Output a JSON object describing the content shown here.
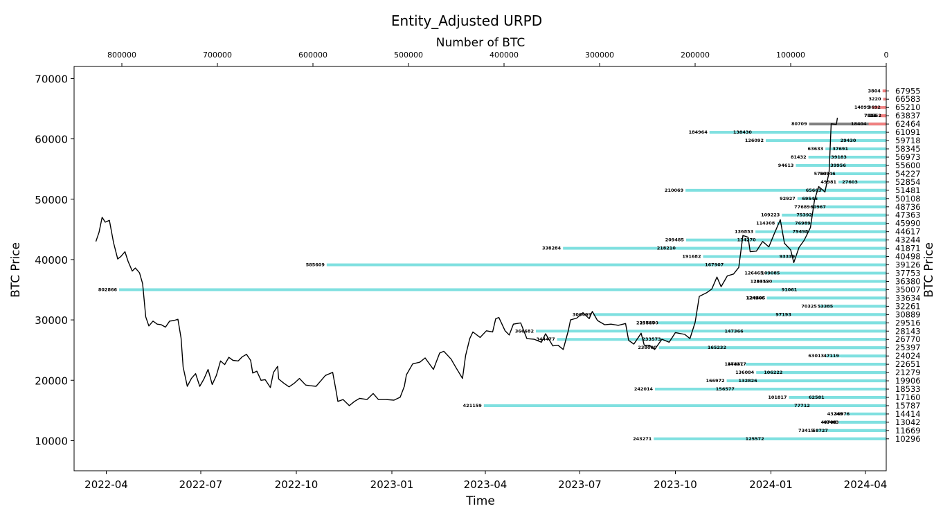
{
  "chart_data": {
    "type": "line",
    "title": "Entity_Adjusted URPD",
    "xlabel": "Time",
    "ylabel": "BTC Price",
    "y2label": "BTC Price",
    "top_xlabel": "Number of BTC",
    "ylim": [
      5000,
      72000
    ],
    "y_ticks": [
      10000,
      20000,
      30000,
      40000,
      50000,
      60000,
      70000
    ],
    "x_ticks": [
      "2022-04",
      "2022-07",
      "2022-10",
      "2023-01",
      "2023-04",
      "2023-07",
      "2023-10",
      "2024-01",
      "2024-04"
    ],
    "top_x_ticks": [
      800000,
      700000,
      600000,
      500000,
      400000,
      300000,
      200000,
      100000,
      0
    ],
    "top_xlim": [
      850000,
      0
    ],
    "grid": false,
    "price_series": {
      "name": "BTC Price",
      "color": "#000000",
      "points": [
        [
          "2022-03-22",
          43000
        ],
        [
          "2022-03-25",
          44500
        ],
        [
          "2022-03-28",
          47000
        ],
        [
          "2022-03-31",
          46200
        ],
        [
          "2022-04-04",
          46500
        ],
        [
          "2022-04-08",
          42800
        ],
        [
          "2022-04-12",
          40100
        ],
        [
          "2022-04-15",
          40500
        ],
        [
          "2022-04-19",
          41300
        ],
        [
          "2022-04-22",
          39700
        ],
        [
          "2022-04-26",
          38100
        ],
        [
          "2022-04-29",
          38600
        ],
        [
          "2022-05-03",
          37800
        ],
        [
          "2022-05-06",
          36000
        ],
        [
          "2022-05-09",
          30500
        ],
        [
          "2022-05-12",
          29000
        ],
        [
          "2022-05-16",
          29800
        ],
        [
          "2022-05-20",
          29300
        ],
        [
          "2022-05-24",
          29200
        ],
        [
          "2022-05-28",
          28800
        ],
        [
          "2022-06-01",
          29800
        ],
        [
          "2022-06-05",
          29900
        ],
        [
          "2022-06-09",
          30100
        ],
        [
          "2022-06-12",
          27000
        ],
        [
          "2022-06-14",
          22200
        ],
        [
          "2022-06-18",
          19000
        ],
        [
          "2022-06-22",
          20300
        ],
        [
          "2022-06-26",
          21100
        ],
        [
          "2022-06-30",
          19000
        ],
        [
          "2022-07-04",
          20200
        ],
        [
          "2022-07-08",
          21800
        ],
        [
          "2022-07-12",
          19300
        ],
        [
          "2022-07-16",
          20800
        ],
        [
          "2022-07-20",
          23200
        ],
        [
          "2022-07-24",
          22600
        ],
        [
          "2022-07-28",
          23800
        ],
        [
          "2022-08-01",
          23300
        ],
        [
          "2022-08-06",
          23200
        ],
        [
          "2022-08-10",
          23900
        ],
        [
          "2022-08-14",
          24300
        ],
        [
          "2022-08-18",
          23300
        ],
        [
          "2022-08-20",
          21200
        ],
        [
          "2022-08-24",
          21500
        ],
        [
          "2022-08-28",
          20000
        ],
        [
          "2022-09-01",
          20100
        ],
        [
          "2022-09-06",
          18800
        ],
        [
          "2022-09-09",
          21300
        ],
        [
          "2022-09-13",
          22300
        ],
        [
          "2022-09-14",
          20200
        ],
        [
          "2022-09-19",
          19500
        ],
        [
          "2022-09-24",
          18900
        ],
        [
          "2022-09-29",
          19500
        ],
        [
          "2022-10-04",
          20300
        ],
        [
          "2022-10-10",
          19200
        ],
        [
          "2022-10-14",
          19100
        ],
        [
          "2022-10-20",
          19000
        ],
        [
          "2022-10-25",
          20000
        ],
        [
          "2022-10-29",
          20800
        ],
        [
          "2022-11-05",
          21300
        ],
        [
          "2022-11-08",
          18500
        ],
        [
          "2022-11-10",
          16500
        ],
        [
          "2022-11-15",
          16800
        ],
        [
          "2022-11-21",
          15800
        ],
        [
          "2022-11-26",
          16500
        ],
        [
          "2022-12-01",
          17000
        ],
        [
          "2022-12-08",
          16800
        ],
        [
          "2022-12-14",
          17800
        ],
        [
          "2022-12-19",
          16800
        ],
        [
          "2022-12-26",
          16800
        ],
        [
          "2023-01-03",
          16700
        ],
        [
          "2023-01-09",
          17200
        ],
        [
          "2023-01-13",
          19000
        ],
        [
          "2023-01-15",
          20900
        ],
        [
          "2023-01-21",
          22700
        ],
        [
          "2023-01-28",
          23000
        ],
        [
          "2023-02-02",
          23700
        ],
        [
          "2023-02-10",
          21800
        ],
        [
          "2023-02-16",
          24500
        ],
        [
          "2023-02-20",
          24800
        ],
        [
          "2023-02-27",
          23500
        ],
        [
          "2023-03-03",
          22300
        ],
        [
          "2023-03-10",
          20300
        ],
        [
          "2023-03-13",
          24100
        ],
        [
          "2023-03-17",
          26900
        ],
        [
          "2023-03-20",
          28000
        ],
        [
          "2023-03-27",
          27100
        ],
        [
          "2023-04-02",
          28200
        ],
        [
          "2023-04-08",
          28000
        ],
        [
          "2023-04-11",
          30200
        ],
        [
          "2023-04-14",
          30400
        ],
        [
          "2023-04-20",
          28200
        ],
        [
          "2023-04-24",
          27500
        ],
        [
          "2023-04-28",
          29300
        ],
        [
          "2023-05-05",
          29500
        ],
        [
          "2023-05-11",
          26900
        ],
        [
          "2023-05-18",
          26800
        ],
        [
          "2023-05-25",
          26300
        ],
        [
          "2023-05-29",
          27700
        ],
        [
          "2023-06-05",
          25700
        ],
        [
          "2023-06-10",
          25800
        ],
        [
          "2023-06-15",
          25100
        ],
        [
          "2023-06-20",
          28300
        ],
        [
          "2023-06-22",
          30000
        ],
        [
          "2023-06-28",
          30300
        ],
        [
          "2023-07-04",
          31200
        ],
        [
          "2023-07-10",
          30200
        ],
        [
          "2023-07-13",
          31400
        ],
        [
          "2023-07-18",
          29900
        ],
        [
          "2023-07-25",
          29200
        ],
        [
          "2023-07-31",
          29300
        ],
        [
          "2023-08-07",
          29100
        ],
        [
          "2023-08-14",
          29400
        ],
        [
          "2023-08-17",
          26600
        ],
        [
          "2023-08-22",
          26000
        ],
        [
          "2023-08-29",
          27800
        ],
        [
          "2023-09-01",
          25800
        ],
        [
          "2023-09-06",
          25800
        ],
        [
          "2023-09-11",
          25100
        ],
        [
          "2023-09-18",
          26800
        ],
        [
          "2023-09-25",
          26300
        ],
        [
          "2023-10-01",
          27900
        ],
        [
          "2023-10-10",
          27600
        ],
        [
          "2023-10-15",
          26900
        ],
        [
          "2023-10-20",
          29600
        ],
        [
          "2023-10-24",
          33900
        ],
        [
          "2023-10-31",
          34500
        ],
        [
          "2023-11-05",
          35100
        ],
        [
          "2023-11-10",
          37100
        ],
        [
          "2023-11-14",
          35500
        ],
        [
          "2023-11-20",
          37300
        ],
        [
          "2023-11-26",
          37600
        ],
        [
          "2023-12-01",
          38700
        ],
        [
          "2023-12-05",
          44000
        ],
        [
          "2023-12-10",
          43700
        ],
        [
          "2023-12-12",
          41300
        ],
        [
          "2023-12-18",
          41400
        ],
        [
          "2023-12-24",
          43000
        ],
        [
          "2023-12-30",
          42100
        ],
        [
          "2024-01-04",
          44200
        ],
        [
          "2024-01-10",
          46600
        ],
        [
          "2024-01-14",
          42700
        ],
        [
          "2024-01-20",
          41600
        ],
        [
          "2024-01-23",
          39500
        ],
        [
          "2024-01-28",
          42000
        ],
        [
          "2024-02-02",
          43200
        ],
        [
          "2024-02-08",
          45300
        ],
        [
          "2024-02-12",
          49900
        ],
        [
          "2024-02-16",
          52100
        ],
        [
          "2024-02-22",
          51200
        ],
        [
          "2024-02-26",
          54500
        ],
        [
          "2024-02-28",
          62500
        ],
        [
          "2024-03-04",
          62400
        ],
        [
          "2024-03-05",
          63500
        ]
      ]
    },
    "urpd": {
      "bar_color": "#7fe0e0",
      "current_bucket_color": "#808080",
      "above_price_color": "#f08080",
      "buckets": [
        {
          "price": 67955,
          "supply": 3804,
          "kind": "above"
        },
        {
          "price": 66583,
          "supply": 3220,
          "kind": "above"
        },
        {
          "price": 65210,
          "supply": 3692,
          "kind": "above"
        },
        {
          "price": 65210,
          "supply": 14899,
          "kind": "above"
        },
        {
          "price": 63837,
          "supply": 2952,
          "kind": "above"
        },
        {
          "price": 63837,
          "supply": 7822,
          "kind": "above"
        },
        {
          "price": 63837,
          "supply": 7805,
          "kind": "above"
        },
        {
          "price": 62464,
          "supply": 18404,
          "kind": "above"
        },
        {
          "price": 62464,
          "supply": 80709,
          "kind": "current"
        },
        {
          "price": 61091,
          "supply": 138430,
          "kind": "below"
        },
        {
          "price": 61091,
          "supply": 184964,
          "kind": "below"
        },
        {
          "price": 59718,
          "supply": 126092,
          "kind": "below"
        },
        {
          "price": 59718,
          "supply": 29430,
          "kind": "below"
        },
        {
          "price": 58345,
          "supply": 63633,
          "kind": "below"
        },
        {
          "price": 58345,
          "supply": 37691,
          "kind": "below"
        },
        {
          "price": 56973,
          "supply": 39183,
          "kind": "below"
        },
        {
          "price": 56973,
          "supply": 81432,
          "kind": "below"
        },
        {
          "price": 55600,
          "supply": 94613,
          "kind": "below"
        },
        {
          "price": 55600,
          "supply": 39956,
          "kind": "below"
        },
        {
          "price": 54227,
          "supply": 57037,
          "kind": "below"
        },
        {
          "price": 54227,
          "supply": 50946,
          "kind": "below"
        },
        {
          "price": 52854,
          "supply": 49981,
          "kind": "below"
        },
        {
          "price": 52854,
          "supply": 27603,
          "kind": "below"
        },
        {
          "price": 51481,
          "supply": 65663,
          "kind": "below"
        },
        {
          "price": 51481,
          "supply": 210069,
          "kind": "below"
        },
        {
          "price": 50108,
          "supply": 92927,
          "kind": "below"
        },
        {
          "price": 50108,
          "supply": 69546,
          "kind": "below"
        },
        {
          "price": 48736,
          "supply": 77689,
          "kind": "below"
        },
        {
          "price": 48736,
          "supply": 60967,
          "kind": "below"
        },
        {
          "price": 47363,
          "supply": 75392,
          "kind": "below"
        },
        {
          "price": 47363,
          "supply": 109223,
          "kind": "below"
        },
        {
          "price": 45990,
          "supply": 114308,
          "kind": "below"
        },
        {
          "price": 45990,
          "supply": 76989,
          "kind": "below"
        },
        {
          "price": 44617,
          "supply": 136853,
          "kind": "below"
        },
        {
          "price": 44617,
          "supply": 79498,
          "kind": "below"
        },
        {
          "price": 43244,
          "supply": 134270,
          "kind": "below"
        },
        {
          "price": 43244,
          "supply": 209485,
          "kind": "below"
        },
        {
          "price": 41871,
          "supply": 338284,
          "kind": "below"
        },
        {
          "price": 41871,
          "supply": 218210,
          "kind": "below"
        },
        {
          "price": 40498,
          "supply": 191682,
          "kind": "below"
        },
        {
          "price": 40498,
          "supply": 93339,
          "kind": "below"
        },
        {
          "price": 39126,
          "supply": 585609,
          "kind": "below"
        },
        {
          "price": 39126,
          "supply": 167907,
          "kind": "below"
        },
        {
          "price": 37753,
          "supply": 109085,
          "kind": "below"
        },
        {
          "price": 37753,
          "supply": 126465,
          "kind": "below"
        },
        {
          "price": 36380,
          "supply": 120452,
          "kind": "below"
        },
        {
          "price": 36380,
          "supply": 117190,
          "kind": "below"
        },
        {
          "price": 35007,
          "supply": 91061,
          "kind": "below"
        },
        {
          "price": 35007,
          "supply": 802866,
          "kind": "below"
        },
        {
          "price": 33634,
          "supply": 124405,
          "kind": "below"
        },
        {
          "price": 33634,
          "supply": 124966,
          "kind": "below"
        },
        {
          "price": 32261,
          "supply": 70325,
          "kind": "below"
        },
        {
          "price": 32261,
          "supply": 53385,
          "kind": "below"
        },
        {
          "price": 30889,
          "supply": 97193,
          "kind": "below"
        },
        {
          "price": 30889,
          "supply": 306499,
          "kind": "below"
        },
        {
          "price": 29516,
          "supply": 236400,
          "kind": "below"
        },
        {
          "price": 29516,
          "supply": 239787,
          "kind": "below"
        },
        {
          "price": 28143,
          "supply": 366682,
          "kind": "below"
        },
        {
          "price": 28143,
          "supply": 147366,
          "kind": "below"
        },
        {
          "price": 26770,
          "supply": 233573,
          "kind": "below"
        },
        {
          "price": 26770,
          "supply": 344477,
          "kind": "below"
        },
        {
          "price": 25397,
          "supply": 238000,
          "kind": "below"
        },
        {
          "price": 25397,
          "supply": 165232,
          "kind": "below"
        },
        {
          "price": 24024,
          "supply": 47119,
          "kind": "below"
        },
        {
          "price": 24024,
          "supply": 63013,
          "kind": "below"
        },
        {
          "price": 22651,
          "supply": 144377,
          "kind": "below"
        },
        {
          "price": 22651,
          "supply": 147341,
          "kind": "below"
        },
        {
          "price": 21279,
          "supply": 106222,
          "kind": "below"
        },
        {
          "price": 21279,
          "supply": 136084,
          "kind": "below"
        },
        {
          "price": 19906,
          "supply": 166972,
          "kind": "below"
        },
        {
          "price": 19906,
          "supply": 132826,
          "kind": "below"
        },
        {
          "price": 18533,
          "supply": 242014,
          "kind": "below"
        },
        {
          "price": 18533,
          "supply": 156577,
          "kind": "below"
        },
        {
          "price": 17160,
          "supply": 62581,
          "kind": "below"
        },
        {
          "price": 17160,
          "supply": 101817,
          "kind": "below"
        },
        {
          "price": 15787,
          "supply": 421159,
          "kind": "below"
        },
        {
          "price": 15787,
          "supply": 77712,
          "kind": "below"
        },
        {
          "price": 14414,
          "supply": 36076,
          "kind": "below"
        },
        {
          "price": 14414,
          "supply": 43249,
          "kind": "below"
        },
        {
          "price": 13042,
          "supply": 47403,
          "kind": "below"
        },
        {
          "price": 13042,
          "supply": 49790,
          "kind": "below"
        },
        {
          "price": 11669,
          "supply": 58727,
          "kind": "below"
        },
        {
          "price": 11669,
          "supply": 73415,
          "kind": "below"
        },
        {
          "price": 10296,
          "supply": 125572,
          "kind": "below"
        },
        {
          "price": 10296,
          "supply": 243271,
          "kind": "below"
        }
      ],
      "price_ticks": [
        67955,
        66583,
        65210,
        63837,
        62464,
        61091,
        59718,
        58345,
        56973,
        55600,
        54227,
        52854,
        51481,
        50108,
        48736,
        47363,
        45990,
        44617,
        43244,
        41871,
        40498,
        39126,
        37753,
        36380,
        35007,
        33634,
        32261,
        30889,
        29516,
        28143,
        26770,
        25397,
        24024,
        22651,
        21279,
        19906,
        18533,
        17160,
        15787,
        14414,
        13042,
        11669,
        10296
      ]
    }
  }
}
